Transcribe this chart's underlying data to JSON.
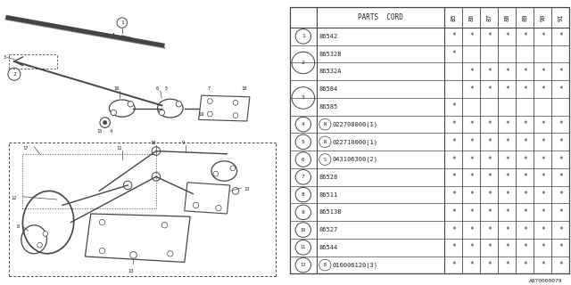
{
  "diagram_label": "A870000079",
  "bg_color": "#ffffff",
  "col_headers": [
    "85",
    "86",
    "87",
    "88",
    "89",
    "90",
    "91"
  ],
  "rows": [
    {
      "num": "1",
      "num_show": true,
      "prefix": "",
      "code": "86542",
      "suffix": "",
      "stars": [
        1,
        1,
        1,
        1,
        1,
        1,
        1
      ]
    },
    {
      "num": "2",
      "num_show": true,
      "prefix": "",
      "code": "86532B",
      "suffix": "",
      "stars": [
        1,
        0,
        0,
        0,
        0,
        0,
        0
      ]
    },
    {
      "num": "2",
      "num_show": false,
      "prefix": "",
      "code": "86532A",
      "suffix": "",
      "stars": [
        0,
        1,
        1,
        1,
        1,
        1,
        1
      ]
    },
    {
      "num": "3",
      "num_show": true,
      "prefix": "",
      "code": "86584",
      "suffix": "",
      "stars": [
        0,
        1,
        1,
        1,
        1,
        1,
        1
      ]
    },
    {
      "num": "3",
      "num_show": false,
      "prefix": "",
      "code": "86585",
      "suffix": "",
      "stars": [
        1,
        0,
        0,
        0,
        0,
        0,
        0
      ]
    },
    {
      "num": "4",
      "num_show": true,
      "prefix": "N",
      "code": "022708000",
      "suffix": "(1)",
      "stars": [
        1,
        1,
        1,
        1,
        1,
        1,
        1
      ]
    },
    {
      "num": "5",
      "num_show": true,
      "prefix": "N",
      "code": "022710000",
      "suffix": "(1)",
      "stars": [
        1,
        1,
        1,
        1,
        1,
        1,
        1
      ]
    },
    {
      "num": "6",
      "num_show": true,
      "prefix": "S",
      "code": "043106300",
      "suffix": "(2)",
      "stars": [
        1,
        1,
        1,
        1,
        1,
        1,
        1
      ]
    },
    {
      "num": "7",
      "num_show": true,
      "prefix": "",
      "code": "86528",
      "suffix": "",
      "stars": [
        1,
        1,
        1,
        1,
        1,
        1,
        1
      ]
    },
    {
      "num": "8",
      "num_show": true,
      "prefix": "",
      "code": "86511",
      "suffix": "",
      "stars": [
        1,
        1,
        1,
        1,
        1,
        1,
        1
      ]
    },
    {
      "num": "9",
      "num_show": true,
      "prefix": "",
      "code": "86513B",
      "suffix": "",
      "stars": [
        1,
        1,
        1,
        1,
        1,
        1,
        1
      ]
    },
    {
      "num": "10",
      "num_show": true,
      "prefix": "",
      "code": "86527",
      "suffix": "",
      "stars": [
        1,
        1,
        1,
        1,
        1,
        1,
        1
      ]
    },
    {
      "num": "11",
      "num_show": true,
      "prefix": "",
      "code": "86544",
      "suffix": "",
      "stars": [
        1,
        1,
        1,
        1,
        1,
        1,
        1
      ]
    },
    {
      "num": "13",
      "num_show": true,
      "prefix": "B",
      "code": "010006120",
      "suffix": "(3)",
      "stars": [
        1,
        1,
        1,
        1,
        1,
        1,
        1
      ]
    }
  ],
  "line_color": "#444444",
  "text_color": "#222222",
  "star_char": "*",
  "grouped_rows": {
    "2": [
      1,
      2
    ],
    "3": [
      3,
      4
    ]
  }
}
